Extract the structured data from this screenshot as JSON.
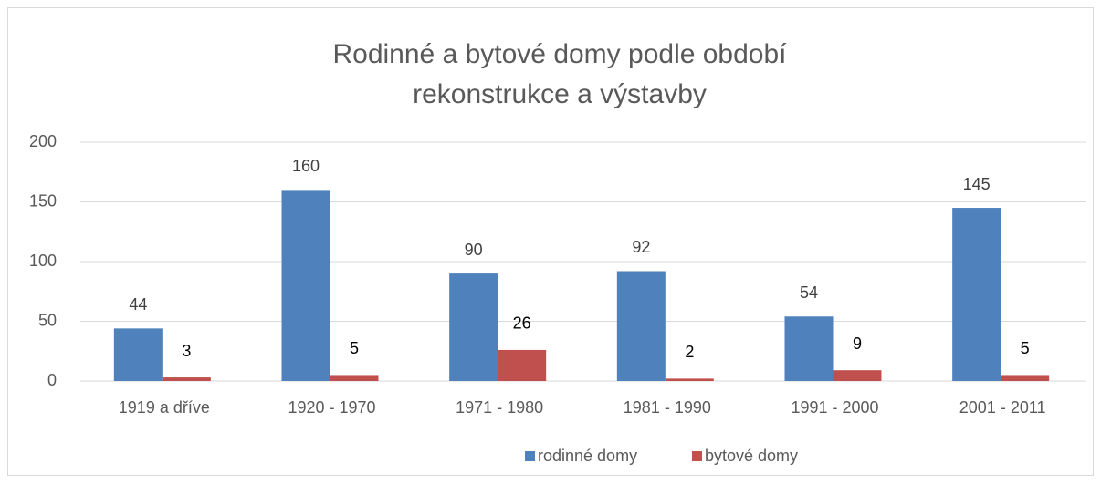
{
  "chart_data": {
    "type": "bar",
    "title": "Rodinné a bytové domy podle období rekonstrukce a výstavby",
    "categories": [
      "1919 a dříve",
      "1920 - 1970",
      "1971 - 1980",
      "1981 - 1990",
      "1991 - 2000",
      "2001 - 2011"
    ],
    "series": [
      {
        "name": "rodinné domy",
        "color": "#4f81bd",
        "values": [
          44,
          160,
          90,
          92,
          54,
          145
        ]
      },
      {
        "name": "bytové domy",
        "color": "#c0504d",
        "values": [
          3,
          5,
          26,
          2,
          9,
          5
        ]
      }
    ],
    "ylim": [
      0,
      200
    ],
    "yticks": [
      0,
      50,
      100,
      150,
      200
    ],
    "grid": true,
    "legend": "bottom"
  }
}
